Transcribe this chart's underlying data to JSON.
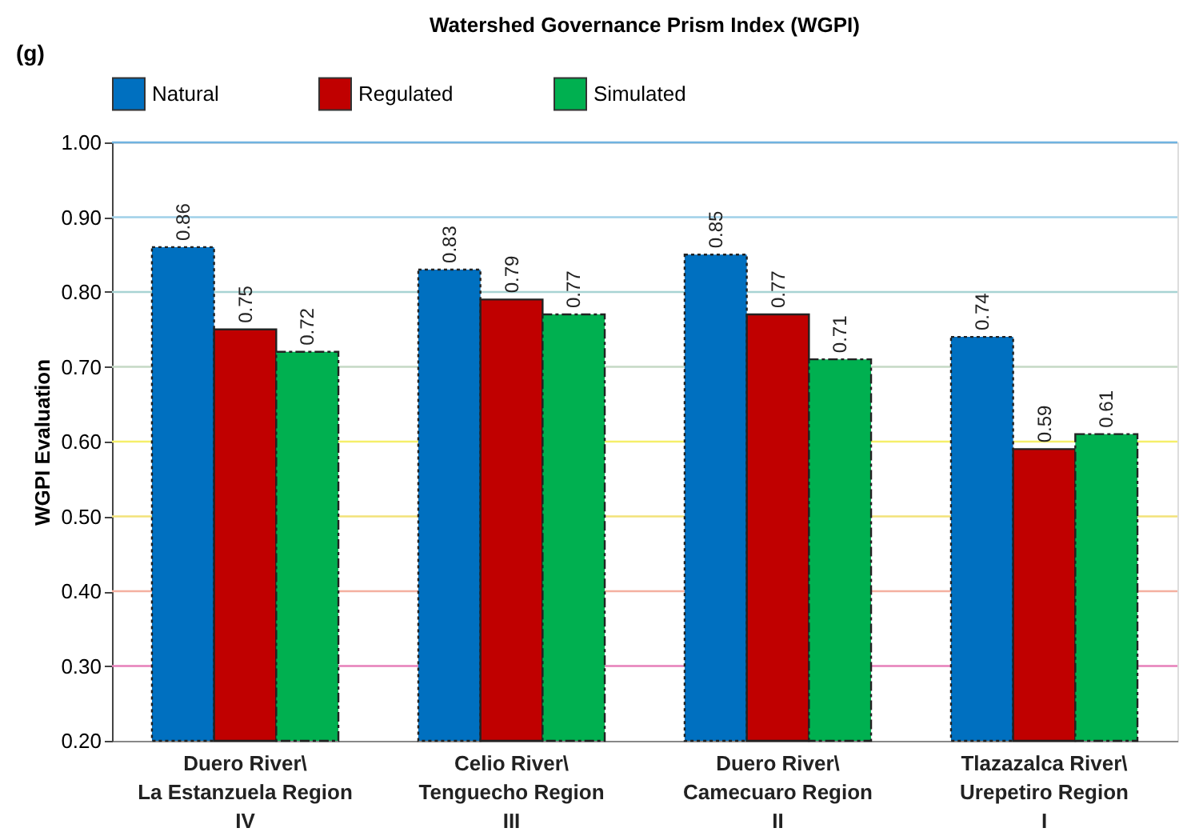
{
  "chart_data": {
    "type": "bar",
    "title": "Watershed Governance Prism Index (WGPI)",
    "ylabel": "WGPI Evaluation",
    "annotations": [
      "(g)"
    ],
    "categories": [
      "Duero River\\\nLa Estanzuela Region\nIV",
      "Celio River\\\nTenguecho Region\nIII",
      "Duero River\\\nCamecuaro Region\nII",
      "Tlazazalca River\\\nUrepetiro Region\nI"
    ],
    "series": [
      {
        "name": "Natural",
        "color": "#0070c0",
        "line_style": "dotted",
        "values": [
          0.86,
          0.83,
          0.85,
          0.74
        ]
      },
      {
        "name": "Regulated",
        "color": "#c00000",
        "values": [
          0.75,
          0.79,
          0.77,
          0.59
        ]
      },
      {
        "name": "Simulated",
        "color": "#00b050",
        "line_style": "dashed",
        "values": [
          0.72,
          0.77,
          0.71,
          0.61
        ]
      }
    ],
    "ylim": [
      0.2,
      1.0
    ],
    "yticks": [
      {
        "value": 0.2,
        "label": "0.20"
      },
      {
        "value": 0.3,
        "label": "0.30"
      },
      {
        "value": 0.4,
        "label": "0.40"
      },
      {
        "value": 0.5,
        "label": "0.50"
      },
      {
        "value": 0.6,
        "label": "0.60"
      },
      {
        "value": 0.7,
        "label": "0.70"
      },
      {
        "value": 0.8,
        "label": "0.80"
      },
      {
        "value": 0.9,
        "label": "0.90"
      },
      {
        "value": 1.0,
        "label": "1.00"
      }
    ],
    "ref_lines": [
      {
        "axis": "y",
        "value": 0.3,
        "color": "#e67fb9"
      },
      {
        "axis": "y",
        "value": 0.4,
        "color": "#f4b0a0"
      },
      {
        "axis": "y",
        "value": 0.5,
        "color": "#f2e27a"
      },
      {
        "axis": "y",
        "value": 0.6,
        "color": "#f5ef6a"
      },
      {
        "axis": "y",
        "value": 0.7,
        "color": "#c5d8c5"
      },
      {
        "axis": "y",
        "value": 0.8,
        "color": "#a8d4d4"
      },
      {
        "axis": "y",
        "value": 0.9,
        "color": "#9fd0e8"
      },
      {
        "axis": "y",
        "value": 1.0,
        "color": "#6fb3e0"
      }
    ],
    "data_labels": true,
    "legend": "top",
    "grid": false
  }
}
